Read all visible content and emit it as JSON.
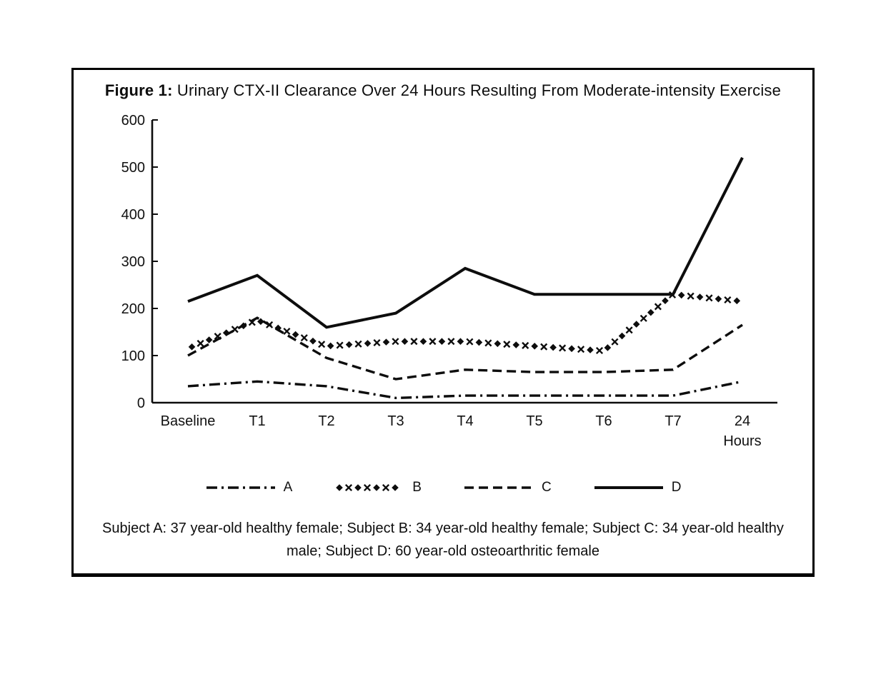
{
  "figure": {
    "label": "Figure 1:",
    "title": " Urinary CTX-II Clearance Over 24 Hours Resulting From Moderate-intensity Exercise",
    "caption": "Subject A: 37 year-old healthy female; Subject B: 34 year-old healthy female; Subject C: 34 year-old healthy male; Subject D: 60 year-old osteoarthritic female"
  },
  "chart_data": {
    "type": "line",
    "title": "Urinary CTX-II Clearance Over 24 Hours Resulting From Moderate-intensity Exercise",
    "categories": [
      "Baseline",
      "T1",
      "T2",
      "T3",
      "T4",
      "T5",
      "T6",
      "T7",
      "24 Hours"
    ],
    "series": [
      {
        "name": "A",
        "style": "dash-dot",
        "values": [
          35,
          45,
          35,
          10,
          15,
          15,
          15,
          15,
          45
        ]
      },
      {
        "name": "B",
        "style": "dotted-x",
        "values": [
          115,
          175,
          120,
          130,
          130,
          120,
          110,
          230,
          215
        ]
      },
      {
        "name": "C",
        "style": "dashed",
        "values": [
          100,
          180,
          95,
          50,
          70,
          65,
          65,
          70,
          165
        ]
      },
      {
        "name": "D",
        "style": "solid",
        "values": [
          215,
          270,
          160,
          190,
          285,
          230,
          230,
          230,
          520
        ]
      }
    ],
    "ylim": [
      0,
      600
    ],
    "yticks": [
      0,
      100,
      200,
      300,
      400,
      500,
      600
    ],
    "xlabel": "",
    "ylabel": "",
    "grid": false,
    "legend_position": "bottom",
    "line_color": "#0d0d0d"
  }
}
